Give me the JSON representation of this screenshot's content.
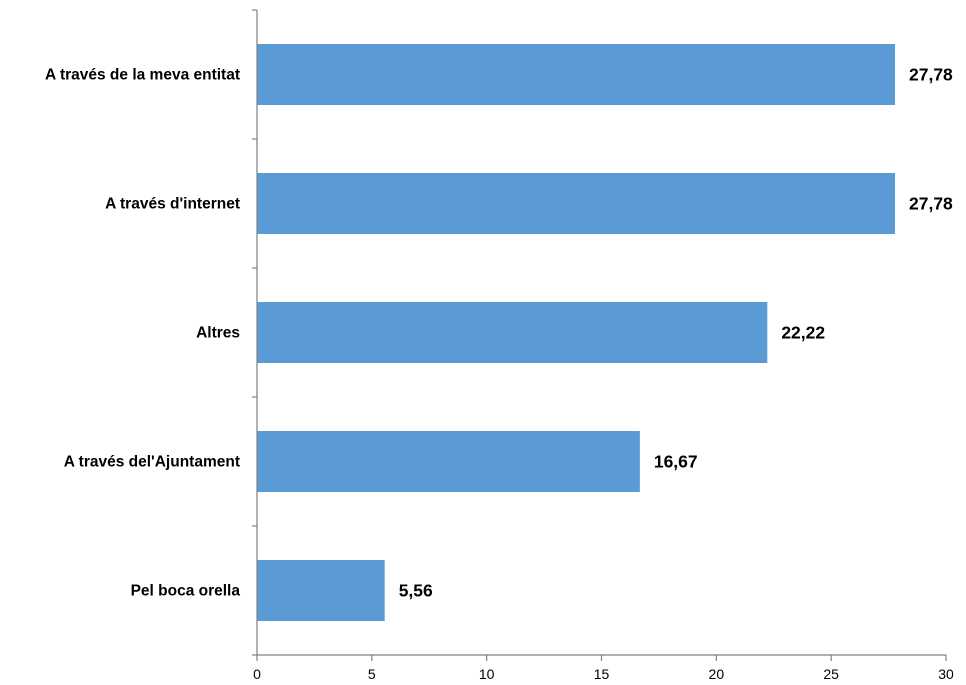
{
  "chart_data": {
    "type": "bar",
    "orientation": "horizontal",
    "title": "",
    "xlabel": "",
    "ylabel": "",
    "categories": [
      "A través de la meva entitat",
      "A través d'internet",
      "Altres",
      "A través del'Ajuntament",
      "Pel boca orella"
    ],
    "values": [
      27.78,
      27.78,
      22.22,
      16.67,
      5.56
    ],
    "value_labels": [
      "27,78",
      "27,78",
      "22,22",
      "16,67",
      "5,56"
    ],
    "xlim": [
      0,
      30
    ],
    "x_ticks": [
      0,
      5,
      10,
      15,
      20,
      25,
      30
    ],
    "x_tick_labels": [
      "0",
      "5",
      "10",
      "15",
      "20",
      "25",
      "30"
    ],
    "grid": false,
    "legend": "none",
    "bar_color": "#5b9bd5",
    "axis_color": "#808080"
  }
}
